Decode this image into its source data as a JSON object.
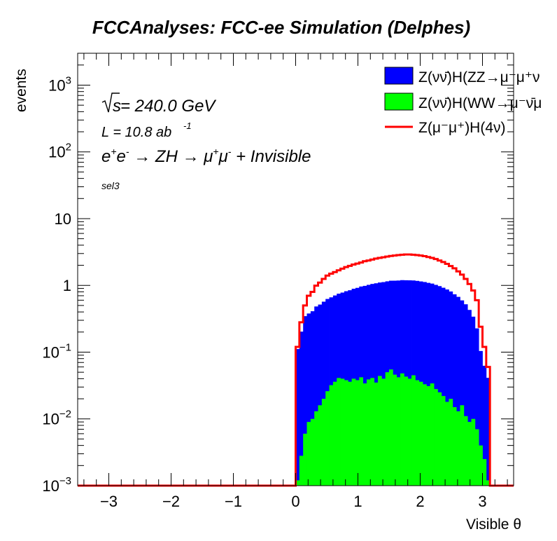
{
  "chart_data": {
    "type": "histogram",
    "title": "FCCAnalyses: FCC-ee Simulation (Delphes)",
    "xlabel": "Visible θ",
    "ylabel": "events",
    "xlim": [
      -3.5,
      3.5
    ],
    "ylim": [
      0.001,
      3000
    ],
    "yscale": "log",
    "xticks": [
      -3,
      -2,
      -1,
      0,
      1,
      2,
      3
    ],
    "xtick_labels": [
      "−3",
      "−2",
      "−1",
      "0",
      "1",
      "2",
      "3"
    ],
    "yticks": [
      {
        "value": 0.001,
        "base": "10",
        "exp": "−3"
      },
      {
        "value": 0.01,
        "base": "10",
        "exp": "−2"
      },
      {
        "value": 0.1,
        "base": "10",
        "exp": "−1"
      },
      {
        "value": 1,
        "base": "1",
        "exp": ""
      },
      {
        "value": 10,
        "base": "10",
        "exp": ""
      },
      {
        "value": 100,
        "base": "10",
        "exp": "2"
      },
      {
        "value": 1000,
        "base": "10",
        "exp": "3"
      }
    ],
    "legend_position": "top-right",
    "annotations": {
      "sqrt_s": "s",
      "sqrt_s_value": " = 240.0 GeV",
      "lumi": "L = 10.8 ab",
      "lumi_exp": "-1",
      "process": {
        "e1": "e",
        "e1sup": "+",
        "e2": "e",
        "e2sup": "-",
        "arrow1": " → ZH ",
        "arrow2": " → μ",
        "mu1sup": "+",
        "mu2": "μ",
        "mu2sup": "-",
        "tail": " + Invisible"
      },
      "selection": "sel3"
    },
    "bin_edges_start": 0.0,
    "bin_width": 0.06,
    "series": [
      {
        "name": "Z(νν̄)H(ZZ→μ⁻μ⁺ν",
        "legend_label": "Z(νν̄)H(ZZ→μ⁻μ⁺ν",
        "style": "stacked-fill",
        "color": "#0000ff",
        "values": [
          0.11,
          0.2,
          0.34,
          0.37,
          0.4,
          0.47,
          0.5,
          0.55,
          0.6,
          0.63,
          0.67,
          0.71,
          0.74,
          0.78,
          0.81,
          0.85,
          0.88,
          0.92,
          0.95,
          0.98,
          1.01,
          1.04,
          1.06,
          1.08,
          1.1,
          1.12,
          1.13,
          1.14,
          1.15,
          1.15,
          1.15,
          1.14,
          1.13,
          1.11,
          1.09,
          1.06,
          1.03,
          0.99,
          0.95,
          0.9,
          0.85,
          0.79,
          0.72,
          0.66,
          0.58,
          0.51,
          0.42,
          0.33,
          0.22,
          0.1,
          0.06,
          0.04
        ]
      },
      {
        "name": "Z(νν̄)H(WW→μ⁻ν̄μ",
        "legend_label": "Z(νν̄)H(WW→μ⁻ν̄μ",
        "style": "stacked-fill",
        "color": "#00ff00",
        "values": [
          0.0012,
          0.0028,
          0.006,
          0.009,
          0.01,
          0.013,
          0.016,
          0.02,
          0.026,
          0.032,
          0.036,
          0.041,
          0.04,
          0.038,
          0.036,
          0.04,
          0.038,
          0.042,
          0.034,
          0.039,
          0.041,
          0.035,
          0.044,
          0.04,
          0.05,
          0.055,
          0.046,
          0.042,
          0.048,
          0.043,
          0.04,
          0.045,
          0.038,
          0.036,
          0.033,
          0.031,
          0.034,
          0.028,
          0.025,
          0.022,
          0.018,
          0.02,
          0.015,
          0.013,
          0.016,
          0.011,
          0.009,
          0.01,
          0.007,
          0.004,
          0.0025,
          0.0012
        ]
      },
      {
        "name": "Z(μ⁻μ⁺)H(4ν)",
        "legend_label": "Z(μ⁻μ⁺)H(4ν)",
        "style": "line",
        "color": "#ff0000",
        "values": [
          0.12,
          0.28,
          0.5,
          0.7,
          0.8,
          0.99,
          1.1,
          1.25,
          1.4,
          1.5,
          1.58,
          1.68,
          1.78,
          1.88,
          1.96,
          2.05,
          2.12,
          2.2,
          2.3,
          2.36,
          2.44,
          2.52,
          2.58,
          2.64,
          2.7,
          2.76,
          2.8,
          2.84,
          2.88,
          2.9,
          2.9,
          2.88,
          2.84,
          2.8,
          2.74,
          2.66,
          2.58,
          2.48,
          2.36,
          2.24,
          2.1,
          1.95,
          1.8,
          1.62,
          1.45,
          1.25,
          1.05,
          0.84,
          0.6,
          0.24,
          0.12,
          0.06
        ]
      }
    ]
  }
}
